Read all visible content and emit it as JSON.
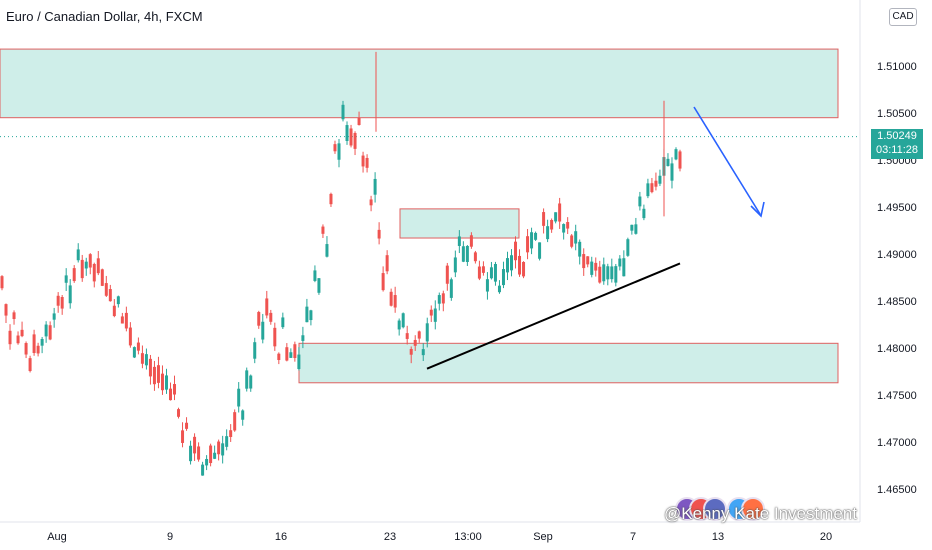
{
  "header": {
    "title": "Euro / Canadian Dollar, 4h, FXCM",
    "currency": "CAD"
  },
  "price_label": {
    "price": "1.50249",
    "countdown": "03:11:28"
  },
  "watermark": {
    "text": "@Kenny Kate Investment"
  },
  "colors": {
    "up": "#26a69a",
    "down": "#ef5350",
    "zone_fill": "#cfeee9",
    "zone_border": "#e06060",
    "trendline": "#000000",
    "arrow": "#2962ff",
    "axis_text": "#131722"
  },
  "chart_data": {
    "type": "candlestick",
    "symbol": "EURCAD",
    "timeframe": "4h",
    "ylim": [
      1.4625,
      1.515
    ],
    "y_ticks": [
      "1.46500",
      "1.47000",
      "1.47500",
      "1.48000",
      "1.48500",
      "1.49000",
      "1.49500",
      "1.50000",
      "1.50500",
      "1.51000"
    ],
    "x_ticks": [
      "Aug",
      "9",
      "16",
      "23",
      "13:00",
      "Sep",
      "7",
      "13",
      "20"
    ],
    "last_price": 1.50249,
    "zones": [
      {
        "low": 1.5045,
        "high": 1.5118
      },
      {
        "low": 1.4917,
        "high": 1.4948
      },
      {
        "low": 1.4763,
        "high": 1.4805
      }
    ],
    "trendline": {
      "from": 1.4778,
      "to": 1.489
    },
    "candles_path": [
      [
        1.487,
        1.482
      ],
      [
        1.485,
        1.48
      ],
      [
        1.482,
        1.479
      ],
      [
        1.481,
        1.478
      ],
      [
        1.48,
        1.4795
      ],
      [
        1.4815,
        1.483
      ],
      [
        1.483,
        1.4855
      ],
      [
        1.485,
        1.489
      ],
      [
        1.488,
        1.49
      ],
      [
        1.49,
        1.489
      ],
      [
        1.489,
        1.487
      ],
      [
        1.487,
        1.486
      ],
      [
        1.486,
        1.483
      ],
      [
        1.483,
        1.481
      ],
      [
        1.481,
        1.479
      ],
      [
        1.479,
        1.478
      ],
      [
        1.478,
        1.477
      ],
      [
        1.477,
        1.476
      ],
      [
        1.476,
        1.474
      ],
      [
        1.474,
        1.47
      ],
      [
        1.47,
        1.467
      ],
      [
        1.467,
        1.468
      ],
      [
        1.468,
        1.469
      ],
      [
        1.469,
        1.47
      ],
      [
        1.47,
        1.471
      ],
      [
        1.471,
        1.476
      ],
      [
        1.476,
        1.48
      ],
      [
        1.48,
        1.484
      ],
      [
        1.484,
        1.486
      ],
      [
        1.486,
        1.479
      ],
      [
        1.479,
        1.478
      ],
      [
        1.478,
        1.48
      ],
      [
        1.48,
        1.484
      ],
      [
        1.484,
        1.49
      ],
      [
        1.49,
        1.498
      ],
      [
        1.498,
        1.503
      ],
      [
        1.503,
        1.508
      ],
      [
        1.508,
        1.502
      ],
      [
        1.502,
        1.498
      ],
      [
        1.498,
        1.492
      ],
      [
        1.492,
        1.486
      ],
      [
        1.486,
        1.483
      ],
      [
        1.483,
        1.48
      ],
      [
        1.48,
        1.479
      ],
      [
        1.479,
        1.482
      ],
      [
        1.482,
        1.484
      ],
      [
        1.484,
        1.486
      ],
      [
        1.486,
        1.49
      ],
      [
        1.49,
        1.492
      ],
      [
        1.492,
        1.49
      ],
      [
        1.49,
        1.488
      ],
      [
        1.488,
        1.486
      ],
      [
        1.486,
        1.488
      ],
      [
        1.488,
        1.489
      ],
      [
        1.489,
        1.491
      ],
      [
        1.491,
        1.488
      ],
      [
        1.488,
        1.492
      ],
      [
        1.492,
        1.496
      ],
      [
        1.496,
        1.494
      ],
      [
        1.494,
        1.492
      ],
      [
        1.492,
        1.49
      ],
      [
        1.49,
        1.489
      ],
      [
        1.489,
        1.488
      ],
      [
        1.488,
        1.487
      ],
      [
        1.487,
        1.488
      ],
      [
        1.488,
        1.49
      ],
      [
        1.49,
        1.493
      ],
      [
        1.493,
        1.497
      ],
      [
        1.497,
        1.499
      ],
      [
        1.499,
        1.498
      ],
      [
        1.498,
        1.5
      ],
      [
        1.5,
        1.5025
      ]
    ]
  }
}
